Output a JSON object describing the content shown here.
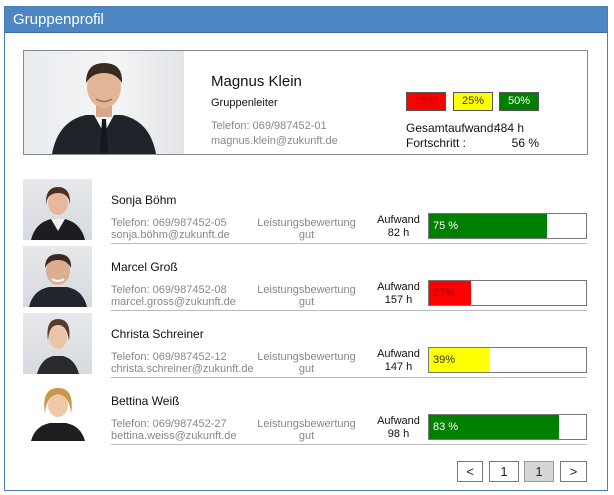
{
  "window": {
    "title": "Gruppenprofil"
  },
  "leader": {
    "name": "Magnus Klein",
    "role": "Gruppenleiter",
    "phone": "Telefon: 069/987452-01",
    "email": "magnus.klein@zukunft.de",
    "legend": [
      {
        "label": "25%",
        "color": "#ff0000"
      },
      {
        "label": "25%",
        "color": "#ffff00"
      },
      {
        "label": "50%",
        "color": "#008000"
      }
    ],
    "total_effort_label": "Gesamtaufwand:",
    "total_effort_value": "484 h",
    "progress_label": "Fortschritt :",
    "progress_value": "56 %"
  },
  "members": [
    {
      "name": "Sonja Böhm",
      "phone": "Telefon: 069/987452-05",
      "email": "sonja.böhm@zukunft.de",
      "performance_label": "Leistungsbewertung",
      "performance_value": "gut",
      "effort_label": "Aufwand",
      "effort_value": "82 h",
      "progress": 0.75,
      "progress_text": "75 %",
      "bar_color": "#008000",
      "text_color": "#ffffff"
    },
    {
      "name": "Marcel Groß",
      "phone": "Telefon: 069/987452-08",
      "email": "marcel.gross@zukunft.de",
      "performance_label": "Leistungsbewertung",
      "performance_value": "gut",
      "effort_label": "Aufwand",
      "effort_value": "157 h",
      "progress": 0.27,
      "progress_text": "27%",
      "bar_color": "#ff0000",
      "text_color": "#8b0000"
    },
    {
      "name": "Christa Schreiner",
      "phone": "Telefon: 069/987452-12",
      "email": "christa.schreiner@zukunft.de",
      "performance_label": "Leistungsbewertung",
      "performance_value": "gut",
      "effort_label": "Aufwand",
      "effort_value": "147 h",
      "progress": 0.39,
      "progress_text": "39%",
      "bar_color": "#ffff00",
      "text_color": "#333333"
    },
    {
      "name": "Bettina Weiß",
      "phone": "Telefon: 069/987452-27",
      "email": "bettina.weiss@zukunft.de",
      "performance_label": "Leistungsbewertung",
      "performance_value": "gut",
      "effort_label": "Aufwand",
      "effort_value": "98 h",
      "progress": 0.83,
      "progress_text": "83 %",
      "bar_color": "#008000",
      "text_color": "#ffffff"
    }
  ],
  "pager": {
    "prev_label": "<",
    "page_label": "1",
    "current_label": "1",
    "next_label": ">"
  }
}
